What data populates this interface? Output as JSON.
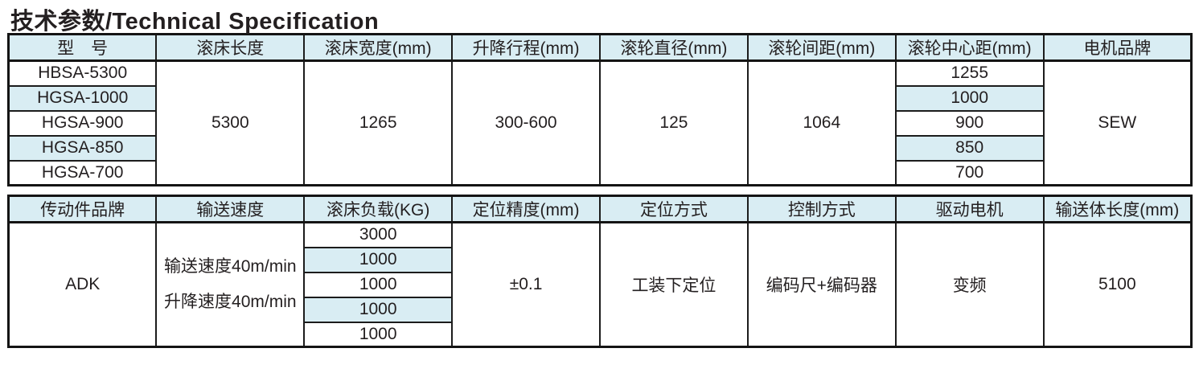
{
  "page_title": "技术参数/Technical Specification",
  "colors": {
    "header_bg": "#d9edf3",
    "stripe_bg": "#d9edf3",
    "border": "#1c1c1c",
    "text": "#231f20"
  },
  "table1": {
    "headers": [
      "型　号",
      "滚床长度",
      "滚床宽度(mm)",
      "升降行程(mm)",
      "滚轮直径(mm)",
      "滚轮间距(mm)",
      "滚轮中心距(mm)",
      "电机品牌"
    ],
    "models": [
      "HBSA-5300",
      "HGSA-1000",
      "HGSA-900",
      "HGSA-850",
      "HGSA-700"
    ],
    "center_distances": [
      "1255",
      "1000",
      "900",
      "850",
      "700"
    ],
    "merged": {
      "bed_length": "5300",
      "bed_width": "1265",
      "lift_stroke": "300-600",
      "roller_diameter": "125",
      "roller_spacing": "1064",
      "motor_brand": "SEW"
    }
  },
  "table2": {
    "headers": [
      "传动件品牌",
      "输送速度",
      "滚床负载(KG)",
      "定位精度(mm)",
      "定位方式",
      "控制方式",
      "驱动电机",
      "输送体长度(mm)"
    ],
    "loads": [
      "3000",
      "1000",
      "1000",
      "1000",
      "1000"
    ],
    "merged": {
      "transmission_brand": "ADK",
      "speed_line1": "输送速度40m/min",
      "speed_line2": "升降速度40m/min",
      "positioning_accuracy": "±0.1",
      "positioning_method": "工装下定位",
      "control_method": "编码尺+编码器",
      "drive_motor": "变频",
      "conveyor_length": "5100"
    }
  }
}
